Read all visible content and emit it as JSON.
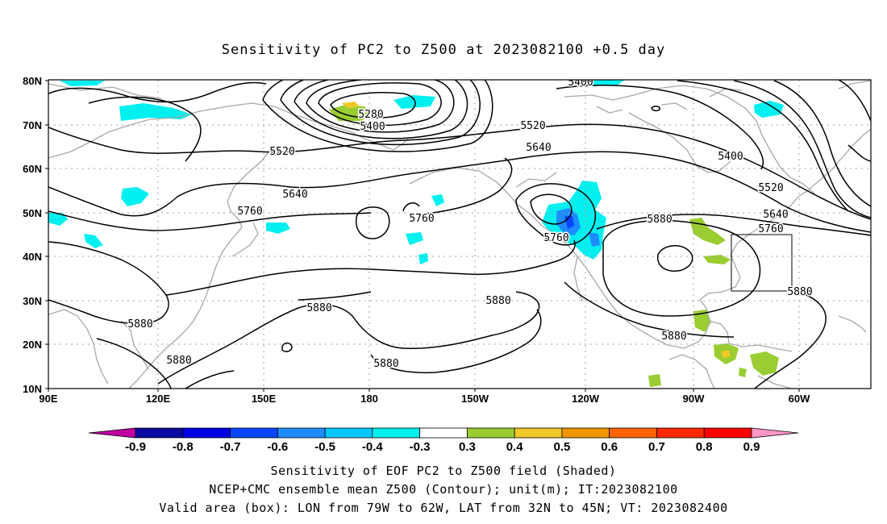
{
  "title": "Sensitivity of PC2 to Z500 at 2023082100 +0.5 day",
  "map": {
    "lon_ticks": [
      "90E",
      "120E",
      "150E",
      "180",
      "150W",
      "120W",
      "90W",
      "60W"
    ],
    "lat_ticks": [
      "80N",
      "70N",
      "60N",
      "50N",
      "40N",
      "30N",
      "20N",
      "10N"
    ],
    "contour_labels": [
      "5400",
      "5280",
      "5400",
      "5520",
      "5520",
      "5640",
      "5640",
      "5760",
      "5760",
      "5760",
      "5400",
      "5520",
      "5640",
      "5760",
      "5880",
      "5880",
      "5880",
      "5880",
      "5880",
      "5880",
      "5880",
      "5880"
    ],
    "valid_box": {
      "lon_from": "79W",
      "lon_to": "62W",
      "lat_from": "32N",
      "lat_to": "45N"
    },
    "colors": {
      "contour": "#000000",
      "coast": "#a8a8a8",
      "grid": "#a0a0a0"
    }
  },
  "colorbar": {
    "labels": [
      "-0.9",
      "-0.8",
      "-0.7",
      "-0.6",
      "-0.5",
      "-0.4",
      "-0.3",
      "0.3",
      "0.4",
      "0.5",
      "0.6",
      "0.7",
      "0.8",
      "0.9"
    ],
    "colors": [
      "#c000a0",
      "#0a0aa0",
      "#0000e6",
      "#0a46ff",
      "#1e8cff",
      "#00c8ff",
      "#00f0f0",
      "#ffffff",
      "#9acd32",
      "#f0c828",
      "#f09600",
      "#ff6400",
      "#ff2800",
      "#ff0000",
      "#ff96c8"
    ]
  },
  "footer": {
    "line1": "Sensitivity of EOF PC2 to Z500 field (Shaded)",
    "line2": "NCEP+CMC ensemble mean Z500 (Contour); unit(m); IT:2023082100",
    "line3": "Valid area (box): LON from 79W to 62W, LAT from 32N to 45N; VT: 2023082400"
  }
}
